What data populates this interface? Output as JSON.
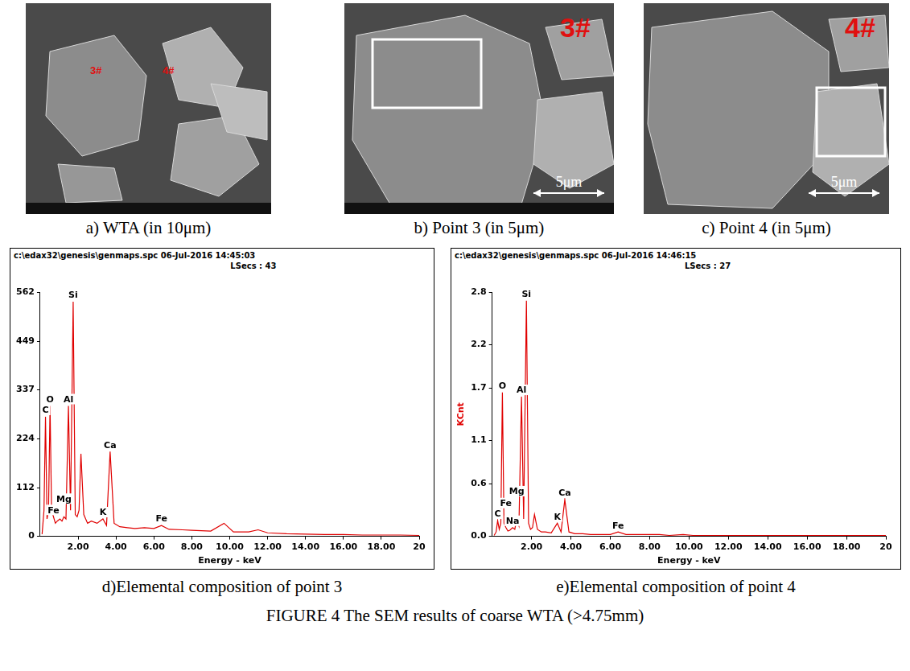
{
  "figure": {
    "caption": "FIGURE 4 The SEM results of coarse WTA (>4.75mm)",
    "images": [
      {
        "caption": "a) WTA (in 10μm)",
        "marks": [
          "3#",
          "4#"
        ]
      },
      {
        "caption": "b) Point 3 (in 5μm)",
        "marks": [
          "3#"
        ],
        "scale_bar": "5μm"
      },
      {
        "caption": "c) Point 4 (in 5μm)",
        "marks": [
          "4#"
        ],
        "scale_bar": "5μm"
      }
    ]
  },
  "chart_data": [
    {
      "type": "line",
      "caption": "d)Elemental composition of point 3",
      "title": "c:\\edax32\\genesis\\genmaps.spc 06-Jul-2016 14:45:03",
      "subtitle": "LSecs : 43",
      "x_label": "Energy - keV",
      "color": "#e00000",
      "x": [
        0.1,
        0.2,
        0.28,
        0.36,
        0.44,
        0.52,
        0.6,
        0.7,
        0.8,
        0.9,
        1.04,
        1.15,
        1.25,
        1.36,
        1.49,
        1.6,
        1.74,
        1.85,
        1.95,
        2.05,
        2.15,
        2.3,
        2.5,
        2.7,
        3.0,
        3.31,
        3.5,
        3.69,
        3.9,
        4.2,
        4.6,
        5.0,
        5.5,
        6.0,
        6.4,
        6.8,
        7.5,
        8.0,
        8.5,
        9.0,
        9.7,
        10.2,
        11.0,
        11.5,
        12.0,
        13,
        14,
        15,
        16,
        17,
        18,
        19,
        20
      ],
      "values": [
        5,
        60,
        275,
        40,
        60,
        300,
        60,
        45,
        30,
        35,
        40,
        35,
        45,
        40,
        300,
        60,
        540,
        50,
        45,
        60,
        190,
        50,
        30,
        35,
        30,
        40,
        25,
        195,
        30,
        22,
        20,
        18,
        20,
        18,
        25,
        16,
        15,
        14,
        13,
        12,
        30,
        10,
        10,
        15,
        8,
        6,
        5,
        4,
        4,
        3,
        3,
        3,
        2
      ],
      "annotations": [
        {
          "text": "C",
          "x": 0.28
        },
        {
          "text": "O",
          "x": 0.52
        },
        {
          "text": "Fe",
          "x": 0.7
        },
        {
          "text": "Mg",
          "x": 1.25
        },
        {
          "text": "Al",
          "x": 1.49
        },
        {
          "text": "Si",
          "x": 1.74
        },
        {
          "text": "K",
          "x": 3.31
        },
        {
          "text": "Ca",
          "x": 3.69
        },
        {
          "text": "Fe",
          "x": 6.4
        }
      ],
      "xlim": [
        0,
        20
      ],
      "xticks": [
        {
          "value": 2,
          "label": "2.00"
        },
        {
          "value": 4,
          "label": "4.00"
        },
        {
          "value": 6,
          "label": "6.00"
        },
        {
          "value": 8,
          "label": "8.00"
        },
        {
          "value": 10,
          "label": "10.00"
        },
        {
          "value": 12,
          "label": "12.00"
        },
        {
          "value": 14,
          "label": "14.00"
        },
        {
          "value": 16,
          "label": "16.00"
        },
        {
          "value": 18,
          "label": "18.00"
        },
        {
          "value": 20,
          "label": "20"
        }
      ],
      "ylim": [
        0,
        562
      ],
      "yticks": [
        0,
        112,
        224,
        337,
        449,
        562
      ],
      "grid": false
    },
    {
      "type": "line",
      "caption": "e)Elemental composition of point 4",
      "title": "c:\\edax32\\genesis\\genmaps.spc 06-Jul-2016 14:46:15",
      "subtitle": "LSecs : 27",
      "x_label": "Energy - keV",
      "y_label": "KCnt",
      "color": "#e00000",
      "x": [
        0.1,
        0.2,
        0.28,
        0.36,
        0.44,
        0.52,
        0.6,
        0.7,
        0.8,
        0.9,
        1.04,
        1.15,
        1.25,
        1.36,
        1.49,
        1.6,
        1.74,
        1.85,
        1.95,
        2.05,
        2.15,
        2.3,
        2.5,
        2.7,
        3.0,
        3.31,
        3.5,
        3.69,
        3.9,
        4.2,
        4.6,
        5.0,
        5.5,
        6.0,
        6.4,
        6.8,
        7.5,
        8.0,
        8.5,
        9.0,
        9.7,
        10.2,
        11.0,
        11.5,
        12.0,
        13,
        14,
        15,
        16,
        17,
        18,
        19,
        20
      ],
      "values": [
        0.01,
        0.05,
        0.18,
        0.08,
        0.15,
        1.65,
        0.15,
        0.1,
        0.06,
        0.07,
        0.1,
        0.08,
        0.2,
        0.12,
        1.6,
        0.2,
        2.7,
        0.15,
        0.08,
        0.1,
        0.25,
        0.08,
        0.05,
        0.05,
        0.04,
        0.15,
        0.05,
        0.42,
        0.05,
        0.03,
        0.03,
        0.02,
        0.02,
        0.02,
        0.05,
        0.02,
        0.02,
        0.02,
        0.02,
        0.01,
        0.02,
        0.01,
        0.01,
        0.01,
        0.01,
        0.01,
        0.01,
        0.01,
        0.01,
        0.01,
        0.01,
        0.01,
        0.01
      ],
      "annotations": [
        {
          "text": "C",
          "x": 0.28
        },
        {
          "text": "O",
          "x": 0.52
        },
        {
          "text": "Fe",
          "x": 0.7
        },
        {
          "text": "Na",
          "x": 1.04
        },
        {
          "text": "Mg",
          "x": 1.25
        },
        {
          "text": "Al",
          "x": 1.49
        },
        {
          "text": "Si",
          "x": 1.74
        },
        {
          "text": "K",
          "x": 3.31
        },
        {
          "text": "Ca",
          "x": 3.69
        },
        {
          "text": "Fe",
          "x": 6.4
        }
      ],
      "xlim": [
        0,
        20
      ],
      "xticks": [
        {
          "value": 2,
          "label": "2.00"
        },
        {
          "value": 4,
          "label": "4.00"
        },
        {
          "value": 6,
          "label": "6.00"
        },
        {
          "value": 8,
          "label": "8.00"
        },
        {
          "value": 10,
          "label": "10.00"
        },
        {
          "value": 12,
          "label": "12.00"
        },
        {
          "value": 14,
          "label": "14.00"
        },
        {
          "value": 16,
          "label": "16.00"
        },
        {
          "value": 18,
          "label": "18.00"
        },
        {
          "value": 20,
          "label": "20"
        }
      ],
      "ylim": [
        0,
        2.8
      ],
      "yticks": [
        {
          "value": 0,
          "label": "0.0"
        },
        0.6,
        1.1,
        1.7,
        2.2,
        2.8
      ],
      "grid": false
    }
  ]
}
